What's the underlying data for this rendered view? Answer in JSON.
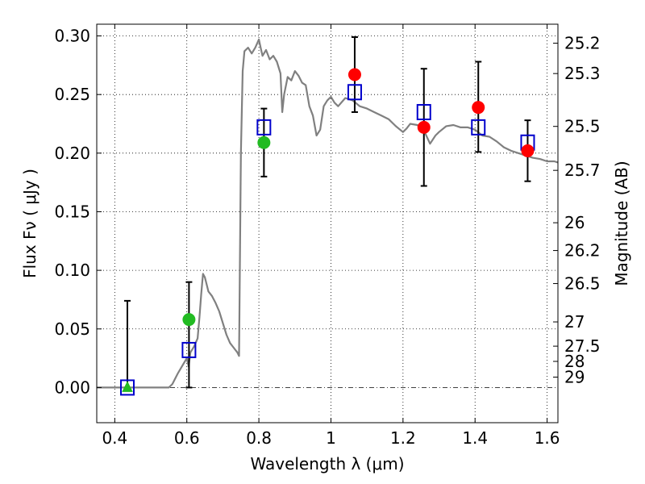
{
  "chart_data": {
    "type": "scatter",
    "xlabel": "Wavelength  λ (μm)",
    "ylabel": "Flux  Fν  ( μJy )",
    "ylabel_right": "Magnitude (AB)",
    "xlim": [
      0.35,
      1.63
    ],
    "ylim": [
      -0.03,
      0.31
    ],
    "grid": true,
    "x_ticks": [
      0.4,
      0.6,
      0.8,
      1.0,
      1.2,
      1.4,
      1.6
    ],
    "x_tick_labels": [
      "0.4",
      "0.6",
      "0.8",
      "1",
      "1.2",
      "1.4",
      "1.6"
    ],
    "y_ticks": [
      0.0,
      0.05,
      0.1,
      0.15,
      0.2,
      0.25,
      0.3
    ],
    "y_tick_labels": [
      "0.00",
      "0.05",
      "0.10",
      "0.15",
      "0.20",
      "0.25",
      "0.30"
    ],
    "right_ticks": [
      {
        "label": "25.2",
        "flux": 0.2938
      },
      {
        "label": "25.3",
        "flux": 0.2679
      },
      {
        "label": "25.5",
        "flux": 0.2228
      },
      {
        "label": "25.7",
        "flux": 0.1853
      },
      {
        "label": "26",
        "flux": 0.1406
      },
      {
        "label": "26.2",
        "flux": 0.1169
      },
      {
        "label": "26.5",
        "flux": 0.0887
      },
      {
        "label": "27",
        "flux": 0.056
      },
      {
        "label": "27.5",
        "flux": 0.0353
      },
      {
        "label": "28",
        "flux": 0.0223
      },
      {
        "label": "29",
        "flux": 0.0089
      }
    ],
    "colors": {
      "model": "#808080",
      "model_points": "#0000cc",
      "measured": "#ff0000",
      "measured_alt": "#22bb22",
      "errorbar": "#000000"
    },
    "series": [
      {
        "kind": "model_spectrum",
        "points": [
          [
            0.35,
            0.0
          ],
          [
            0.55,
            0.0
          ],
          [
            0.56,
            0.003
          ],
          [
            0.575,
            0.012
          ],
          [
            0.59,
            0.02
          ],
          [
            0.6,
            0.025
          ],
          [
            0.605,
            0.018
          ],
          [
            0.61,
            0.03
          ],
          [
            0.62,
            0.035
          ],
          [
            0.63,
            0.042
          ],
          [
            0.635,
            0.06
          ],
          [
            0.64,
            0.08
          ],
          [
            0.645,
            0.097
          ],
          [
            0.65,
            0.094
          ],
          [
            0.66,
            0.082
          ],
          [
            0.67,
            0.078
          ],
          [
            0.68,
            0.072
          ],
          [
            0.69,
            0.065
          ],
          [
            0.7,
            0.055
          ],
          [
            0.71,
            0.045
          ],
          [
            0.72,
            0.038
          ],
          [
            0.73,
            0.034
          ],
          [
            0.74,
            0.03
          ],
          [
            0.745,
            0.027
          ],
          [
            0.75,
            0.2
          ],
          [
            0.755,
            0.27
          ],
          [
            0.76,
            0.287
          ],
          [
            0.77,
            0.29
          ],
          [
            0.78,
            0.285
          ],
          [
            0.79,
            0.29
          ],
          [
            0.8,
            0.297
          ],
          [
            0.805,
            0.29
          ],
          [
            0.81,
            0.283
          ],
          [
            0.82,
            0.288
          ],
          [
            0.83,
            0.28
          ],
          [
            0.84,
            0.283
          ],
          [
            0.85,
            0.278
          ],
          [
            0.86,
            0.268
          ],
          [
            0.865,
            0.235
          ],
          [
            0.87,
            0.25
          ],
          [
            0.88,
            0.265
          ],
          [
            0.89,
            0.262
          ],
          [
            0.9,
            0.27
          ],
          [
            0.91,
            0.266
          ],
          [
            0.92,
            0.26
          ],
          [
            0.93,
            0.258
          ],
          [
            0.94,
            0.24
          ],
          [
            0.95,
            0.232
          ],
          [
            0.96,
            0.215
          ],
          [
            0.97,
            0.22
          ],
          [
            0.98,
            0.24
          ],
          [
            0.99,
            0.245
          ],
          [
            1.0,
            0.248
          ],
          [
            1.01,
            0.243
          ],
          [
            1.02,
            0.24
          ],
          [
            1.04,
            0.247
          ],
          [
            1.06,
            0.245
          ],
          [
            1.08,
            0.24
          ],
          [
            1.1,
            0.238
          ],
          [
            1.12,
            0.235
          ],
          [
            1.14,
            0.232
          ],
          [
            1.16,
            0.229
          ],
          [
            1.18,
            0.223
          ],
          [
            1.2,
            0.218
          ],
          [
            1.21,
            0.221
          ],
          [
            1.22,
            0.225
          ],
          [
            1.24,
            0.224
          ],
          [
            1.26,
            0.218
          ],
          [
            1.275,
            0.208
          ],
          [
            1.29,
            0.215
          ],
          [
            1.3,
            0.218
          ],
          [
            1.32,
            0.223
          ],
          [
            1.34,
            0.224
          ],
          [
            1.36,
            0.222
          ],
          [
            1.38,
            0.222
          ],
          [
            1.4,
            0.22
          ],
          [
            1.42,
            0.215
          ],
          [
            1.44,
            0.214
          ],
          [
            1.46,
            0.21
          ],
          [
            1.48,
            0.205
          ],
          [
            1.5,
            0.202
          ],
          [
            1.52,
            0.2
          ],
          [
            1.54,
            0.198
          ],
          [
            1.56,
            0.196
          ],
          [
            1.58,
            0.195
          ],
          [
            1.6,
            0.193
          ],
          [
            1.62,
            0.193
          ],
          [
            1.63,
            0.192
          ]
        ]
      },
      {
        "kind": "model_bandpass_flux",
        "x": [
          0.435,
          0.606,
          0.814,
          1.066,
          1.258,
          1.409,
          1.546
        ],
        "y": [
          0.0,
          0.032,
          0.222,
          0.252,
          0.235,
          0.222,
          0.209
        ]
      },
      {
        "kind": "measured_flux",
        "x": [
          0.435,
          0.606,
          0.814,
          1.066,
          1.258,
          1.409,
          1.546
        ],
        "y": [
          0.0,
          0.058,
          0.209,
          0.267,
          0.222,
          0.239,
          0.202
        ],
        "yerr_low": [
          0.0,
          0.0,
          0.18,
          0.235,
          0.172,
          0.201,
          0.176
        ],
        "yerr_high": [
          0.074,
          0.09,
          0.238,
          0.299,
          0.272,
          0.278,
          0.228
        ],
        "marker": [
          "triangle",
          "circle",
          "circle",
          "circle",
          "circle",
          "circle",
          "circle"
        ],
        "color": [
          "measured_alt",
          "measured_alt",
          "measured_alt",
          "measured",
          "measured",
          "measured",
          "measured"
        ]
      }
    ]
  }
}
